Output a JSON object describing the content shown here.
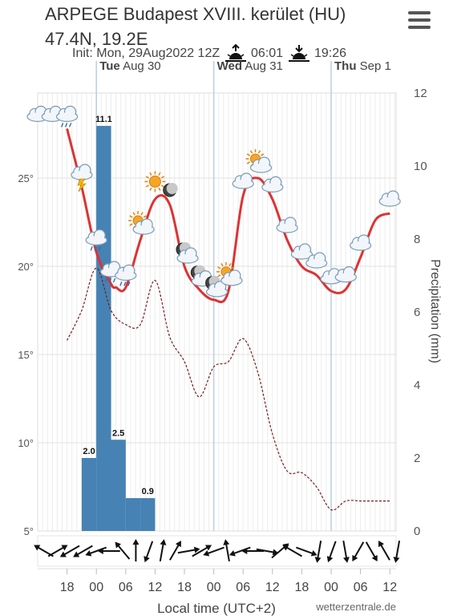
{
  "header": {
    "title_line1": "ARPEGE Budapest XVIII. kerület (HU)",
    "title_line2": "47.4N, 19.2E",
    "init": "Init: Mon, 29Aug2022 12Z",
    "sunrise": "06:01",
    "sunset": "19:26"
  },
  "menu_icon": "hamburger-menu-icon",
  "footer": {
    "xlabel": "Local time (UTC+2)",
    "credit": "wetterzentrale.de"
  },
  "chart_data": {
    "type": "line",
    "x_unit": "hours since Mon 29 Aug 12:00 local",
    "day_labels": [
      {
        "day": "Tue",
        "date": "Aug 30",
        "hour": 12
      },
      {
        "day": "Wed",
        "date": "Aug 31",
        "hour": 36
      },
      {
        "day": "Thu",
        "date": "Sep 1",
        "hour": 60
      }
    ],
    "x_tick_hours": [
      6,
      12,
      18,
      24,
      30,
      36,
      42,
      48,
      54,
      60,
      66,
      72
    ],
    "x_tick_labels": [
      "18",
      "00",
      "06",
      "12",
      "18",
      "00",
      "06",
      "12",
      "18",
      "00",
      "06",
      "12"
    ],
    "left_axis": {
      "label": "",
      "ticks": [
        5,
        10,
        15,
        20,
        25
      ],
      "tick_labels": [
        "5°",
        "10°",
        "15°",
        "20°",
        "25°"
      ],
      "ylim": [
        5,
        28
      ]
    },
    "right_axis": {
      "label": "Precipitation (mm)",
      "ticks": [
        0,
        2,
        4,
        6,
        8,
        10,
        12
      ],
      "ylim": [
        0,
        12
      ]
    },
    "series": [
      {
        "color": "#dd3333",
        "style": "solid",
        "x": [
          6,
          9,
          12,
          15,
          16,
          18,
          21,
          24,
          27,
          30,
          33,
          36,
          39,
          42,
          45,
          48,
          51,
          54,
          57,
          60,
          63,
          66,
          69,
          72,
          75
        ],
        "values": [
          27.8,
          24.5,
          20.8,
          19.0,
          18.8,
          18.8,
          21.5,
          23.8,
          23.5,
          20.0,
          18.7,
          18.1,
          18.6,
          24.0,
          25.0,
          23.8,
          21.5,
          20.0,
          19.5,
          18.6,
          18.7,
          20.5,
          22.6,
          23,
          23
        ]
      },
      {
        "color": "#7a1c1c",
        "style": "dashed",
        "x": [
          6,
          9,
          12,
          15,
          18,
          21,
          24,
          27,
          30,
          33,
          36,
          39,
          42,
          45,
          48,
          51,
          54,
          57,
          60,
          63,
          66,
          69,
          72,
          75
        ],
        "values": [
          15.8,
          17.5,
          19.9,
          17.5,
          16.7,
          16.7,
          19.2,
          16.0,
          14.6,
          12.6,
          14.3,
          14.6,
          15.9,
          14.0,
          10.5,
          8.4,
          8.3,
          7.5,
          6.2,
          6.7,
          6.7,
          6.7,
          6.7,
          6.7
        ]
      }
    ],
    "bars": {
      "axis": "right",
      "color": "#4682b4",
      "x_start": [
        9,
        12,
        15,
        18,
        21
      ],
      "width_hours": 3,
      "values": [
        2.0,
        11.1,
        2.5,
        0.9,
        0.9
      ],
      "labels": [
        "2.0",
        "11.1",
        "2.5",
        "",
        "0.9"
      ]
    },
    "weather_icons": [
      {
        "hour": 0,
        "type": "cloud"
      },
      {
        "hour": 3,
        "type": "cloud"
      },
      {
        "hour": 6,
        "type": "cloud-rain"
      },
      {
        "hour": 9,
        "type": "cloud-thunder"
      },
      {
        "hour": 12,
        "type": "cloud-rain"
      },
      {
        "hour": 15,
        "type": "cloud-rain"
      },
      {
        "hour": 18,
        "type": "cloud-rain"
      },
      {
        "hour": 21,
        "type": "sun-cloud"
      },
      {
        "hour": 24,
        "type": "sun"
      },
      {
        "hour": 27,
        "type": "moon"
      },
      {
        "hour": 30,
        "type": "moon-cloud"
      },
      {
        "hour": 33,
        "type": "moon-cloud"
      },
      {
        "hour": 36,
        "type": "moon-cloud"
      },
      {
        "hour": 39,
        "type": "sun-cloud"
      },
      {
        "hour": 42,
        "type": "cloud"
      },
      {
        "hour": 45,
        "type": "sun-cloud"
      },
      {
        "hour": 48,
        "type": "cloud"
      },
      {
        "hour": 51,
        "type": "cloud"
      },
      {
        "hour": 54,
        "type": "cloud"
      },
      {
        "hour": 57,
        "type": "cloud"
      },
      {
        "hour": 60,
        "type": "cloud"
      },
      {
        "hour": 63,
        "type": "cloud"
      },
      {
        "hour": 66,
        "type": "cloud"
      },
      {
        "hour": 72,
        "type": "cloud"
      }
    ],
    "wind_arrows_deg": [
      300,
      60,
      240,
      240,
      250,
      270,
      320,
      0,
      200,
      10,
      30,
      80,
      60,
      250,
      350,
      250,
      270,
      100,
      50,
      300,
      110,
      190,
      200,
      170,
      210,
      150,
      330,
      190
    ],
    "grid": true
  }
}
